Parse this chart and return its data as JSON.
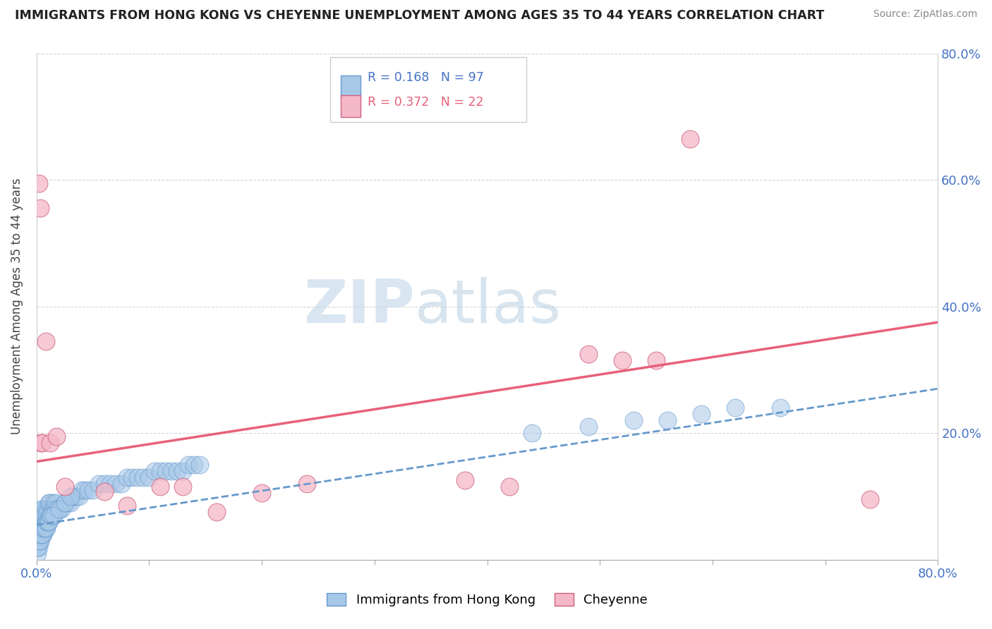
{
  "title": "IMMIGRANTS FROM HONG KONG VS CHEYENNE UNEMPLOYMENT AMONG AGES 35 TO 44 YEARS CORRELATION CHART",
  "source": "Source: ZipAtlas.com",
  "ylabel": "Unemployment Among Ages 35 to 44 years",
  "legend_blue_r": "R = 0.168",
  "legend_blue_n": "N = 97",
  "legend_pink_r": "R = 0.372",
  "legend_pink_n": "N = 22",
  "legend_label_blue": "Immigrants from Hong Kong",
  "legend_label_pink": "Cheyenne",
  "blue_color": "#a8c8e8",
  "blue_edge_color": "#6699cc",
  "pink_color": "#f4b8c8",
  "pink_edge_color": "#d06080",
  "blue_line_color": "#6699cc",
  "pink_line_color": "#e8607a",
  "r_n_color": "#4472c4",
  "pink_r_color": "#e8607a",
  "watermark_zip": "#c8d8e8",
  "watermark_atlas": "#b0c8d8",
  "axis_label_color": "#4472c4",
  "xlim": [
    0.0,
    0.8
  ],
  "ylim": [
    0.0,
    0.8
  ],
  "xticks": [
    0.0,
    0.1,
    0.2,
    0.3,
    0.4,
    0.5,
    0.6,
    0.7,
    0.8
  ],
  "yticks": [
    0.0,
    0.2,
    0.4,
    0.6,
    0.8
  ],
  "blue_scatter_x": [
    0.001,
    0.001,
    0.001,
    0.002,
    0.002,
    0.002,
    0.002,
    0.003,
    0.003,
    0.003,
    0.003,
    0.004,
    0.004,
    0.004,
    0.005,
    0.005,
    0.005,
    0.006,
    0.006,
    0.006,
    0.007,
    0.007,
    0.008,
    0.008,
    0.009,
    0.009,
    0.01,
    0.01,
    0.011,
    0.011,
    0.012,
    0.012,
    0.013,
    0.014,
    0.015,
    0.015,
    0.016,
    0.017,
    0.018,
    0.02,
    0.022,
    0.025,
    0.028,
    0.03,
    0.032,
    0.035,
    0.038,
    0.04,
    0.043,
    0.046,
    0.05,
    0.055,
    0.06,
    0.065,
    0.07,
    0.075,
    0.08,
    0.085,
    0.09,
    0.095,
    0.1,
    0.105,
    0.11,
    0.115,
    0.12,
    0.125,
    0.13,
    0.135,
    0.14,
    0.145,
    0.001,
    0.001,
    0.002,
    0.002,
    0.003,
    0.003,
    0.004,
    0.005,
    0.006,
    0.007,
    0.008,
    0.009,
    0.01,
    0.011,
    0.012,
    0.013,
    0.015,
    0.02,
    0.025,
    0.03,
    0.44,
    0.49,
    0.53,
    0.56,
    0.59,
    0.62,
    0.66
  ],
  "blue_scatter_y": [
    0.02,
    0.03,
    0.04,
    0.03,
    0.04,
    0.05,
    0.06,
    0.03,
    0.05,
    0.06,
    0.07,
    0.04,
    0.06,
    0.08,
    0.04,
    0.05,
    0.07,
    0.04,
    0.06,
    0.08,
    0.05,
    0.07,
    0.06,
    0.08,
    0.05,
    0.07,
    0.06,
    0.08,
    0.06,
    0.09,
    0.07,
    0.09,
    0.07,
    0.08,
    0.07,
    0.09,
    0.08,
    0.09,
    0.08,
    0.08,
    0.08,
    0.09,
    0.09,
    0.09,
    0.1,
    0.1,
    0.1,
    0.11,
    0.11,
    0.11,
    0.11,
    0.12,
    0.12,
    0.12,
    0.12,
    0.12,
    0.13,
    0.13,
    0.13,
    0.13,
    0.13,
    0.14,
    0.14,
    0.14,
    0.14,
    0.14,
    0.14,
    0.15,
    0.15,
    0.15,
    0.01,
    0.02,
    0.02,
    0.03,
    0.03,
    0.04,
    0.04,
    0.04,
    0.05,
    0.05,
    0.05,
    0.06,
    0.06,
    0.06,
    0.07,
    0.07,
    0.07,
    0.08,
    0.09,
    0.1,
    0.2,
    0.21,
    0.22,
    0.22,
    0.23,
    0.24,
    0.24
  ],
  "pink_scatter_x": [
    0.002,
    0.003,
    0.004,
    0.005,
    0.008,
    0.012,
    0.018,
    0.025,
    0.06,
    0.08,
    0.11,
    0.13,
    0.16,
    0.2,
    0.24,
    0.38,
    0.42,
    0.49,
    0.52,
    0.55,
    0.58,
    0.74
  ],
  "pink_scatter_y": [
    0.595,
    0.555,
    0.185,
    0.185,
    0.345,
    0.185,
    0.195,
    0.115,
    0.108,
    0.085,
    0.115,
    0.115,
    0.075,
    0.105,
    0.12,
    0.125,
    0.115,
    0.325,
    0.315,
    0.315,
    0.665,
    0.095
  ],
  "blue_line_x": [
    0.0,
    0.8
  ],
  "blue_line_y": [
    0.055,
    0.27
  ],
  "pink_line_x": [
    0.0,
    0.8
  ],
  "pink_line_y": [
    0.155,
    0.375
  ]
}
